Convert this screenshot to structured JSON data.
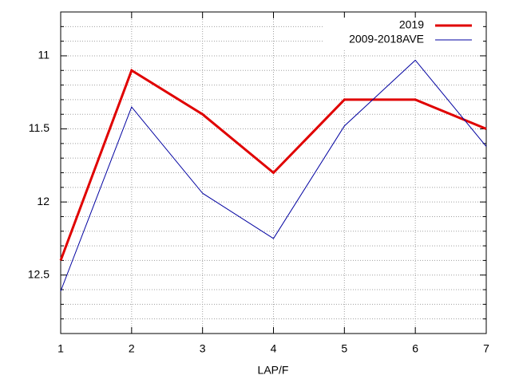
{
  "chart_data": {
    "type": "line",
    "xlabel": "LAP/F",
    "x": [
      1,
      2,
      3,
      4,
      5,
      6,
      7
    ],
    "series": [
      {
        "name": "2019",
        "color": "#e00000",
        "width": 3,
        "values": [
          12.4,
          11.1,
          11.4,
          11.8,
          11.3,
          11.3,
          11.5
        ]
      },
      {
        "name": "2009-2018AVE",
        "color": "#0000a0",
        "width": 1,
        "values": [
          12.61,
          11.35,
          11.94,
          12.25,
          11.48,
          11.03,
          11.62
        ]
      }
    ],
    "xlim": [
      1,
      7
    ],
    "xticks": [
      1,
      2,
      3,
      4,
      5,
      6,
      7
    ],
    "ylim": [
      12.9,
      10.7
    ],
    "yticks": [
      11,
      11.5,
      12,
      12.5
    ],
    "yminorticks": [
      10.8,
      10.9,
      11.1,
      11.2,
      11.3,
      11.4,
      11.6,
      11.7,
      11.8,
      11.9,
      12.1,
      12.2,
      12.3,
      12.4,
      12.6,
      12.7,
      12.8
    ],
    "grid": true,
    "legend": "top-right"
  }
}
